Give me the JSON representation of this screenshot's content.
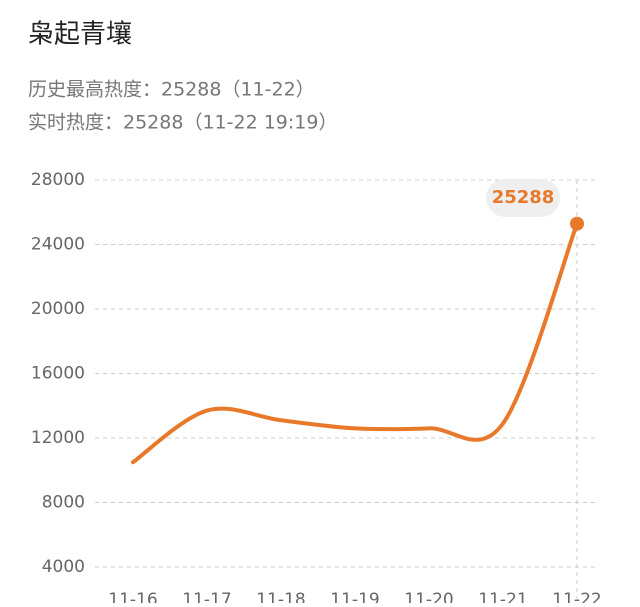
{
  "chart_data": {
    "type": "line",
    "title": "枭起青壤",
    "subtitles": [
      "历史最高热度：25288（11-22）",
      "实时热度：25288（11-22 19:19）"
    ],
    "categories": [
      "11-16",
      "11-17",
      "11-18",
      "11-19",
      "11-20",
      "11-21",
      "11-22"
    ],
    "values": [
      10500,
      13700,
      13100,
      12600,
      12600,
      12900,
      25288
    ],
    "color": "#e8792a",
    "ylim": [
      4000,
      28000
    ],
    "yticks": [
      4000,
      8000,
      12000,
      16000,
      20000,
      24000,
      28000
    ],
    "grid": true
  }
}
